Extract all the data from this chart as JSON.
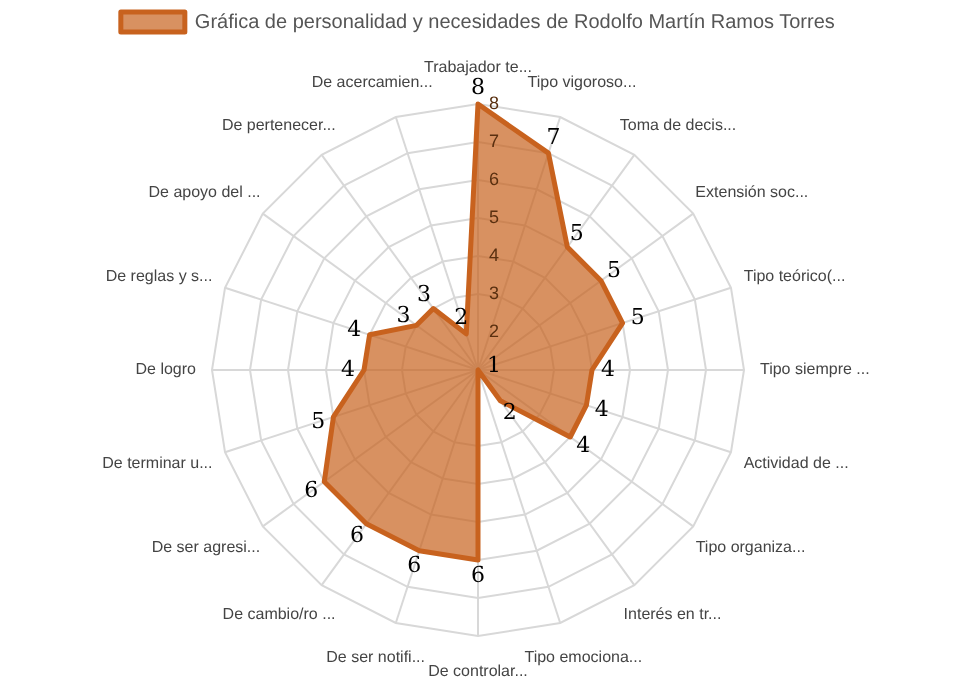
{
  "chart_data": {
    "type": "radar",
    "categories": [
      "Trabajador te...",
      "Tipo vigoroso...",
      "Toma de decis...",
      "Extensión soc...",
      "Tipo teórico(...",
      "Tipo siempre ...",
      "Actividad de ...",
      "Tipo organiza...",
      "Interés en tr...",
      "Tipo emociona...",
      "De controlar...",
      "De ser notifi...",
      "De cambio/ro ...",
      "De ser agresi...",
      "De terminar u...",
      "De logro",
      "De reglas y s...",
      "De apoyo del ...",
      "De pertenecer...",
      "De acercamien..."
    ],
    "series": [
      {
        "name": "Gráfica de personalidad y necesidades de Rodolfo Martín Ramos Torres",
        "color": "#c8621e",
        "values": [
          8,
          7,
          5,
          5,
          5,
          4,
          4,
          4,
          2,
          1,
          6,
          6,
          6,
          6,
          5,
          4,
          4,
          3,
          3,
          2
        ]
      }
    ],
    "ylim": [
      1,
      8
    ],
    "yticks": [
      2,
      3,
      4,
      5,
      6,
      7,
      8
    ],
    "grid": true,
    "legend": "top",
    "data_labels": true,
    "marker": "none"
  }
}
